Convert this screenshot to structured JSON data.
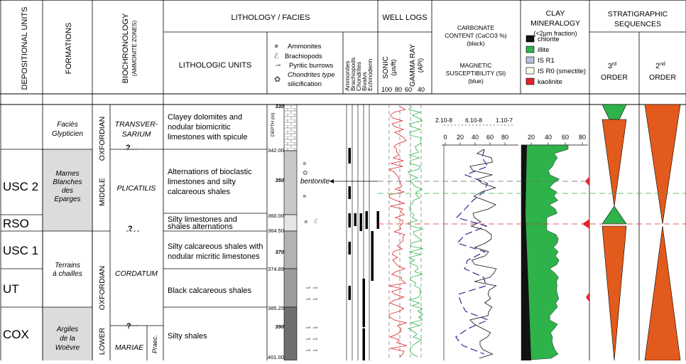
{
  "headers": {
    "depositional_units": "DEPOSITIONAL UNITS",
    "formations": "FORMATIONS",
    "biochronology": "BIOCHRONOLOGY",
    "biochronology_sub": "(AMMONITE ZONES)",
    "lithology_title": "LITHOLOGY / FACIES",
    "lithologic_units": "LITHOLOGIC UNITS",
    "well_logs": "WELL LOGS",
    "sonic": "SONIC",
    "sonic_unit": "(µs/ft)",
    "gamma": "GAMMA RAY",
    "gamma_unit": "(API)",
    "carbonate_1": "CARBONATE",
    "carbonate_2": "CONTENT (CaCO3 %)",
    "carbonate_3": "(black)",
    "magnetic_1": "MAGNETIC",
    "magnetic_2": "SUSCEPTIBILITY (SI)",
    "magnetic_3": "(blue)",
    "clay_1": "CLAY",
    "clay_2": "MINERALOGY",
    "clay_3": "(<2µm fraction)",
    "strat_1": "STRATIGRAPHIC",
    "strat_2": "SEQUENCES",
    "third": "3",
    "second": "2",
    "third_sup": "rd",
    "second_sup": "nd",
    "order": "ORDER",
    "depth": "DEPTH (m)"
  },
  "fossil_legend": [
    "Ammonites",
    "Brachiopods",
    "Pyritic burrows",
    "Chondrites type",
    "silicification"
  ],
  "fossil_columns": [
    "Ammonites",
    "Brachiopods",
    "Chondrites",
    "Bivalvs",
    "Echinoderm"
  ],
  "clay_legend": [
    {
      "label": "chlorite",
      "color": "#111111"
    },
    {
      "label": "illite",
      "color": "#2db34a"
    },
    {
      "label": "IS R1",
      "color": "#b9bedc"
    },
    {
      "label": "IS R0 (smectite)",
      "color": "#fbfbea"
    },
    {
      "label": "kaolinite",
      "color": "#e0262b"
    }
  ],
  "well_ticks": [
    "100",
    "80",
    "60",
    "40"
  ],
  "mag_ticks": [
    "2.10-8",
    "6.10-8",
    "1.10-7"
  ],
  "carb_ticks": [
    "0",
    "20",
    "40",
    "60",
    "80"
  ],
  "clay_ticks": [
    "20",
    "40",
    "60",
    "80"
  ],
  "units": [
    "USC 2",
    "RSO",
    "USC 1",
    "UT",
    "COX"
  ],
  "formations": [
    {
      "lines": [
        "Faciès",
        "Glypticien"
      ]
    },
    {
      "lines": [
        "Marnes",
        "Blanches",
        "des",
        "Eparges"
      ]
    },
    {
      "lines": [
        "Terrains",
        "à chailles"
      ]
    },
    {
      "lines": [
        "Argiles",
        "de la",
        "Woëvre"
      ]
    }
  ],
  "stages": [
    "OXFORDIAN",
    "MIDDLE",
    "OXFORDIAN",
    "LOWER"
  ],
  "zones": [
    {
      "lines": [
        "TRANSVER-",
        "SARIUM"
      ]
    },
    {
      "lines": [
        "PLICATILIS"
      ]
    },
    {
      "lines": [
        "CORDATUM"
      ]
    },
    {
      "lines": [
        "MARIAE"
      ]
    }
  ],
  "praec": "Praec.",
  "question": "?",
  "lithologic_units": [
    {
      "lines": [
        "Clayey dolomites and",
        "nodular biomicritic",
        "limestones with spicule"
      ]
    },
    {
      "lines": [
        "Alternations of bioclastic",
        "limestones and silty",
        "calcareous shales"
      ]
    },
    {
      "lines": [
        "Silty limestones and",
        "shales alternations"
      ]
    },
    {
      "lines": [
        "Silty calcareous shales with",
        "nodular micritic limestones"
      ]
    },
    {
      "lines": [
        "Black calcareous shales"
      ]
    },
    {
      "lines": [
        "Silty shales"
      ]
    }
  ],
  "depths": [
    "330",
    "342.00",
    "350",
    "360.00",
    "364.50",
    "370",
    "374.89",
    "385.25",
    "390",
    "401.00"
  ],
  "bentonite": "bentonite",
  "colors": {
    "sonic": "#e0262b",
    "gamma": "#2db34a",
    "magnetic": "#2b2f8f",
    "carbonate": "#111111",
    "third_order": "#e25a1c",
    "second_order": "#e25a1c",
    "third_order_tip": "#2db34a",
    "grey_fill": "#dcdcdc"
  }
}
